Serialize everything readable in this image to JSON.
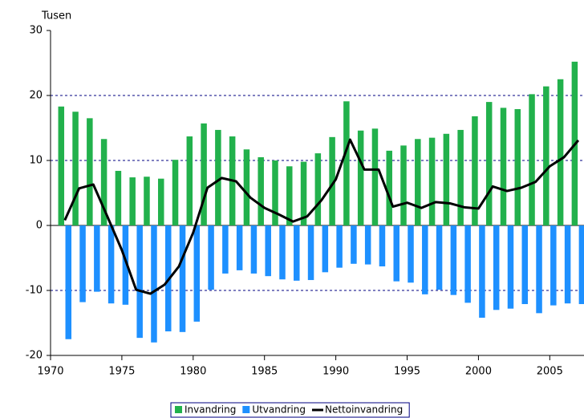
{
  "chart_data": {
    "type": "bar",
    "y_label": "Tusen",
    "x": [
      1971,
      1972,
      1973,
      1974,
      1975,
      1976,
      1977,
      1978,
      1979,
      1980,
      1981,
      1982,
      1983,
      1984,
      1985,
      1986,
      1987,
      1988,
      1989,
      1990,
      1991,
      1992,
      1993,
      1994,
      1995,
      1996,
      1997,
      1998,
      1999,
      2000,
      2001,
      2002,
      2003,
      2004,
      2005,
      2006,
      2007
    ],
    "series": [
      {
        "name": "Invandring",
        "color": "#22b14c",
        "values": [
          18.3,
          17.5,
          16.5,
          13.3,
          8.4,
          7.4,
          7.5,
          7.2,
          10.1,
          13.7,
          15.7,
          14.7,
          13.7,
          11.7,
          10.5,
          10.0,
          9.1,
          9.8,
          11.1,
          13.6,
          19.1,
          14.6,
          14.9,
          11.5,
          12.3,
          13.3,
          13.5,
          14.1,
          14.7,
          16.8,
          19.0,
          18.1,
          17.9,
          20.2,
          21.4,
          22.5,
          25.2
        ]
      },
      {
        "name": "Utvandring",
        "color": "#1e90ff",
        "values": [
          -17.5,
          -11.8,
          -10.2,
          -12.0,
          -12.2,
          -17.3,
          -18.0,
          -16.3,
          -16.4,
          -14.8,
          -9.9,
          -7.4,
          -6.9,
          -7.4,
          -7.8,
          -8.3,
          -8.5,
          -8.4,
          -7.2,
          -6.5,
          -5.9,
          -6.0,
          -6.3,
          -8.6,
          -8.8,
          -10.6,
          -9.9,
          -10.7,
          -11.9,
          -14.2,
          -13.0,
          -12.8,
          -12.1,
          -13.5,
          -12.3,
          -12.0,
          -12.1
        ]
      },
      {
        "name": "Nettoinvandring",
        "type": "line",
        "color": "#000000",
        "values": [
          0.8,
          5.7,
          6.3,
          1.3,
          -3.8,
          -9.9,
          -10.5,
          -9.1,
          -6.3,
          -1.1,
          5.8,
          7.3,
          6.8,
          4.3,
          2.7,
          1.7,
          0.6,
          1.4,
          3.9,
          7.1,
          13.2,
          8.6,
          8.6,
          2.9,
          3.5,
          2.7,
          3.6,
          3.4,
          2.8,
          2.6,
          6.0,
          5.3,
          5.8,
          6.7,
          9.1,
          10.5,
          13.1
        ]
      }
    ],
    "xlim": [
      1970,
      2007.4
    ],
    "xticks": [
      1970,
      1975,
      1980,
      1985,
      1990,
      1995,
      2000,
      2005
    ],
    "ylim": [
      -20,
      30
    ],
    "yticks": [
      -20,
      -10,
      0,
      10,
      20,
      30
    ],
    "grid": true,
    "legend": "bottom"
  }
}
